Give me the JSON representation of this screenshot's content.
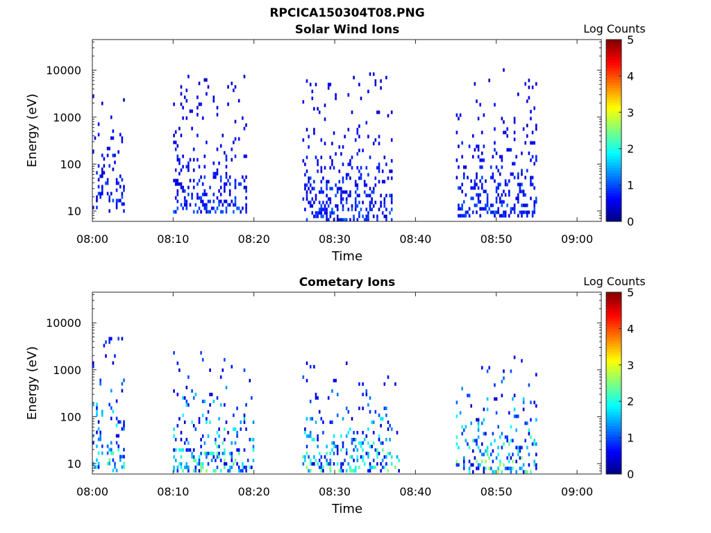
{
  "figure": {
    "title": "RPCICA150304T08.PNG",
    "colors": {
      "axes": "#262626",
      "background": "#ffffff"
    },
    "colormap": [
      "#00007f",
      "#0000ff",
      "#007fff",
      "#00ffff",
      "#7fff7f",
      "#ffff00",
      "#ff7f00",
      "#ff0000",
      "#7f0000"
    ]
  },
  "chart_data": [
    {
      "type": "heatmap",
      "title": "Solar Wind Ions",
      "xlabel": "Time",
      "ylabel": "Energy (eV)",
      "xlim": [
        "08:00",
        "09:03"
      ],
      "xticks": [
        "08:00",
        "08:10",
        "08:20",
        "08:30",
        "08:40",
        "08:50",
        "09:00"
      ],
      "ylim": [
        6,
        45000
      ],
      "yscale": "log",
      "yticks": [
        "10",
        "100",
        "1000",
        "10000"
      ],
      "colorbar": {
        "label": "Log Counts",
        "range": [
          0,
          5
        ],
        "ticks": [
          "0",
          "1",
          "2",
          "3",
          "4",
          "5"
        ]
      },
      "bursts": [
        {
          "start": "08:00",
          "end": "08:04",
          "emin": 10,
          "emax": 3000,
          "peak": 0.6
        },
        {
          "start": "08:10",
          "end": "08:19",
          "emin": 10,
          "emax": 8000,
          "peak": 0.6
        },
        {
          "start": "08:26",
          "end": "08:37",
          "emin": 7,
          "emax": 9000,
          "peak": 0.6
        },
        {
          "start": "08:45",
          "end": "08:55",
          "emin": 8,
          "emax": 11000,
          "peak": 0.6
        }
      ]
    },
    {
      "type": "heatmap",
      "title": "Cometary Ions",
      "xlabel": "Time",
      "ylabel": "Energy (eV)",
      "xlim": [
        "08:00",
        "09:03"
      ],
      "xticks": [
        "08:00",
        "08:10",
        "08:20",
        "08:30",
        "08:40",
        "08:50",
        "09:00"
      ],
      "ylim": [
        6,
        45000
      ],
      "yscale": "log",
      "yticks": [
        "10",
        "100",
        "1000",
        "10000"
      ],
      "colorbar": {
        "label": "Log Counts",
        "range": [
          0,
          5
        ],
        "ticks": [
          "0",
          "1",
          "2",
          "3",
          "4",
          "5"
        ]
      },
      "bursts": [
        {
          "start": "08:00",
          "end": "08:04",
          "emin": 7,
          "emax": 5000,
          "peak": 1.6
        },
        {
          "start": "08:10",
          "end": "08:20",
          "emin": 7,
          "emax": 2500,
          "peak": 1.8
        },
        {
          "start": "08:26",
          "end": "08:38",
          "emin": 7,
          "emax": 1500,
          "peak": 1.7
        },
        {
          "start": "08:45",
          "end": "08:55",
          "emin": 7,
          "emax": 2000,
          "peak": 1.8
        }
      ]
    }
  ]
}
